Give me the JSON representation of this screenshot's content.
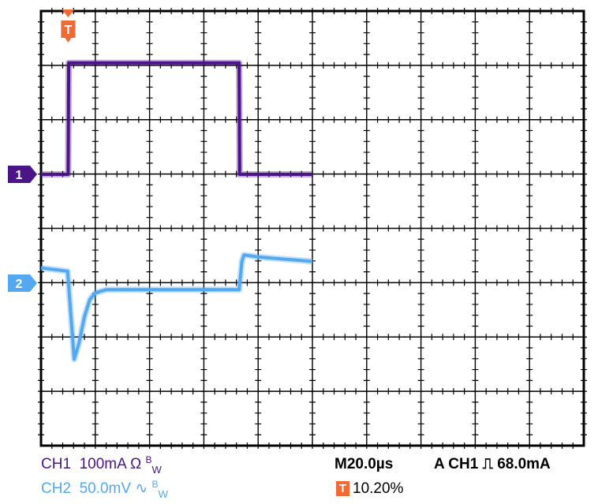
{
  "chart_data": {
    "type": "line",
    "instrument": "oscilloscope",
    "grid": {
      "divisions_x": 10,
      "divisions_y": 8,
      "minor_ticks_per_division": 5
    },
    "x": {
      "unit": "us",
      "per_division": 20.0,
      "range": [
        0,
        200
      ]
    },
    "series": [
      {
        "name": "CH1",
        "color": "#4b1587",
        "scale": "100mA",
        "unit": "div",
        "marker_level": 0,
        "points": [
          [
            0,
            0
          ],
          [
            10,
            0
          ],
          [
            10.2,
            2.05
          ],
          [
            73,
            2.05
          ],
          [
            73.2,
            0
          ],
          [
            100,
            0
          ]
        ]
      },
      {
        "name": "CH2",
        "color": "#54a8f0",
        "scale": "50.0mV",
        "unit": "div",
        "marker_level": 0,
        "points": [
          [
            0,
            0.28
          ],
          [
            9.8,
            0.22
          ],
          [
            12.2,
            -1.4
          ],
          [
            14,
            -1.1
          ],
          [
            16,
            -0.62
          ],
          [
            18,
            -0.3
          ],
          [
            20,
            -0.18
          ],
          [
            24,
            -0.12
          ],
          [
            30,
            -0.12
          ],
          [
            73,
            -0.12
          ],
          [
            74,
            0.4
          ],
          [
            74.8,
            0.52
          ],
          [
            80,
            0.48
          ],
          [
            100,
            0.4
          ]
        ]
      }
    ],
    "trigger_marker": {
      "label": "T",
      "x": 10.0
    },
    "channel_markers": [
      {
        "label": "1",
        "color": "#4b1587"
      },
      {
        "label": "2",
        "color": "#54a8f0"
      }
    ]
  },
  "readouts": {
    "ch1": {
      "label": "CH1",
      "scale": "100mA",
      "symbol": "Ω",
      "bw": "B",
      "bw_sub": "W"
    },
    "ch2": {
      "label": "CH2",
      "scale": "50.0mV",
      "symbol": "∿",
      "bw": "B",
      "bw_sub": "W"
    },
    "timebase": "M20.0µs",
    "trigger_info": "A  CH1",
    "trigger_slope": "⎍",
    "trigger_level": "68.0mA",
    "trigger_position_icon": "T",
    "trigger_position": "10.20%"
  }
}
